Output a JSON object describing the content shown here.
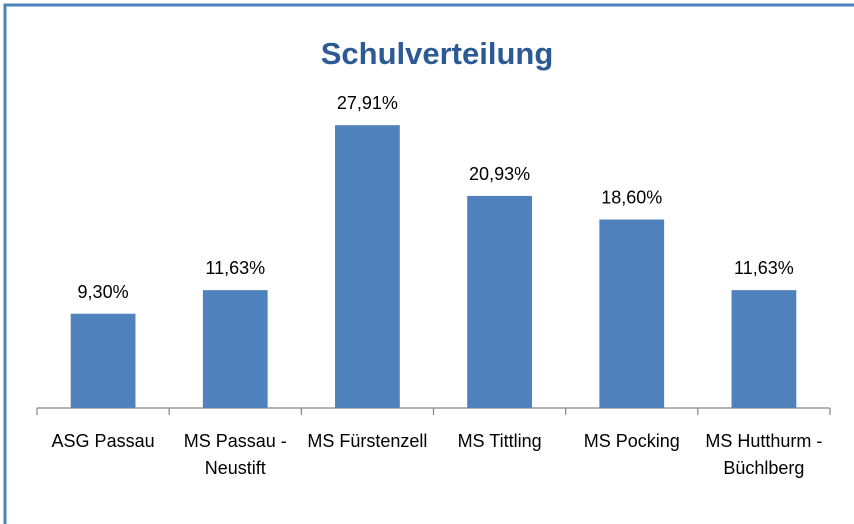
{
  "chart_data": {
    "type": "bar",
    "title": "Schulverteilung",
    "categories": [
      "ASG Passau",
      "MS Passau - Neustift",
      "MS Fürstenzell",
      "MS Tittling",
      "MS Pocking",
      "MS Hutthurm - Büchlberg"
    ],
    "values": [
      9.3,
      11.63,
      27.91,
      20.93,
      18.6,
      11.63
    ],
    "value_labels": [
      "9,30%",
      "11,63%",
      "27,91%",
      "20,93%",
      "18,60%",
      "11,63%"
    ],
    "color": "#4f81bd",
    "ylim": [
      0,
      30
    ]
  }
}
